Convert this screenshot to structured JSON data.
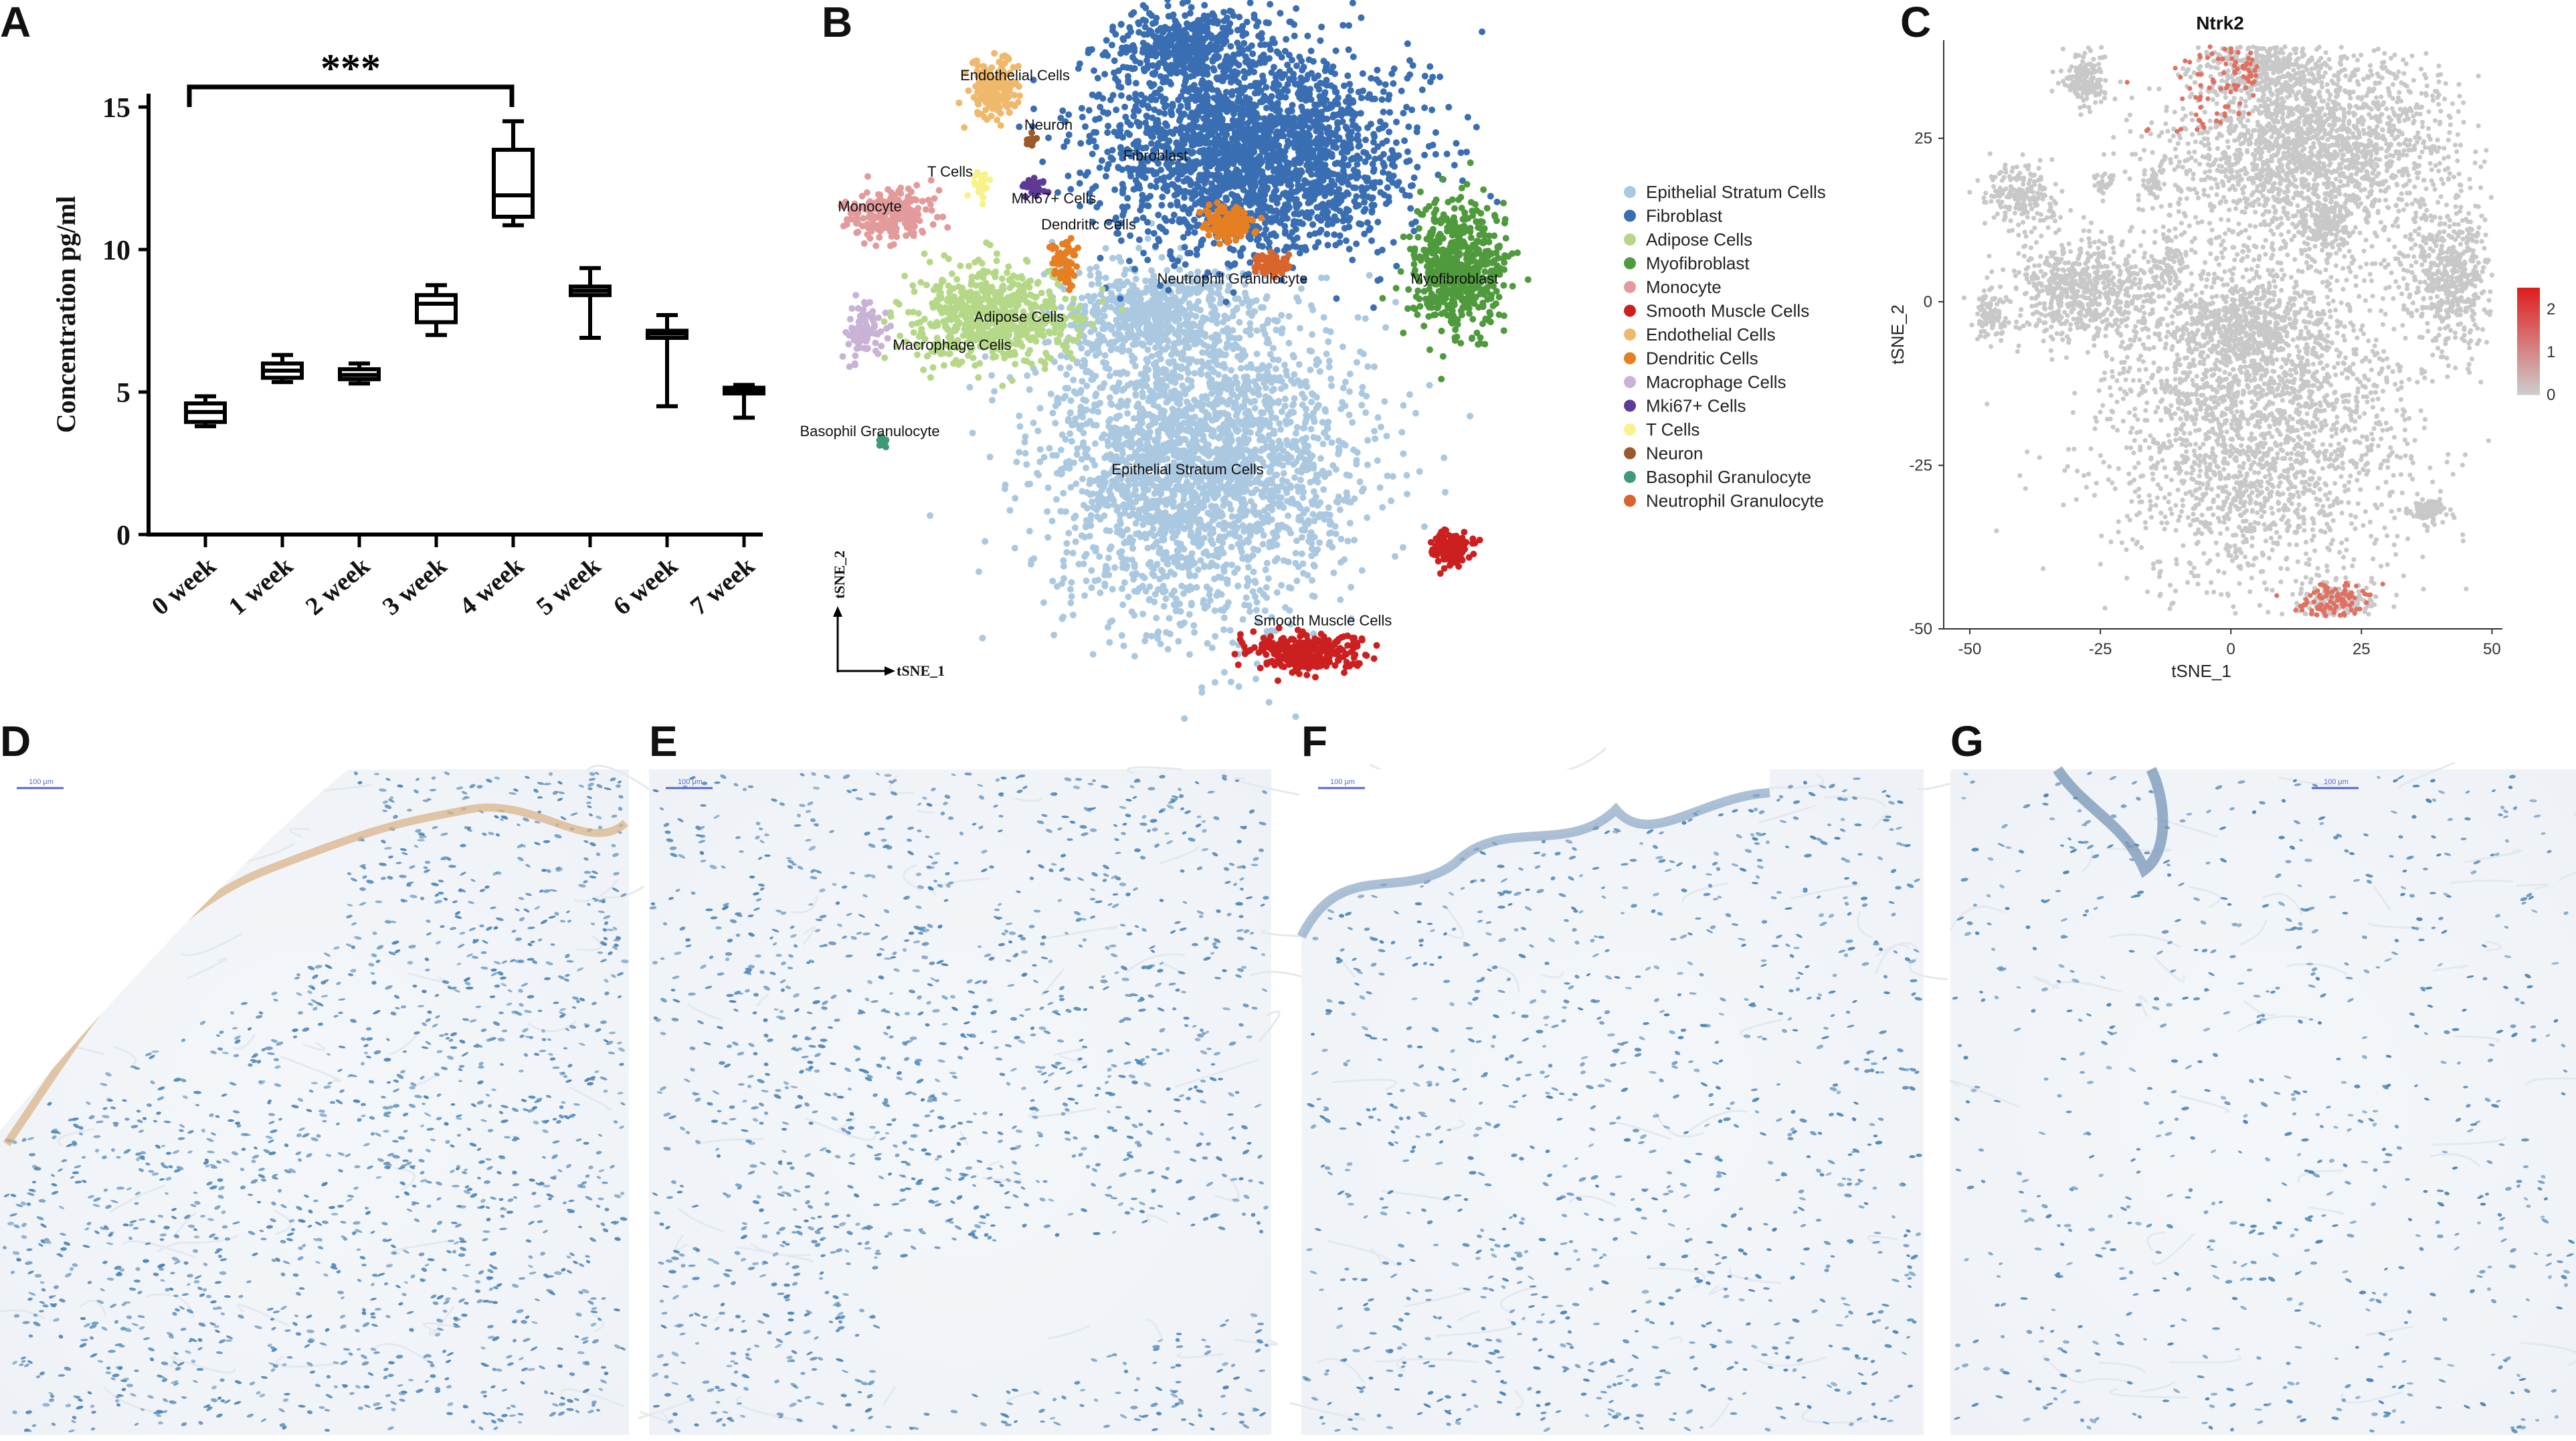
{
  "panels": {
    "A": "A",
    "B": "B",
    "C": "C",
    "D": "D",
    "E": "E",
    "F": "F",
    "G": "G"
  },
  "chart_data": [
    {
      "type": "box",
      "ylabel": "Concentration pg/ml",
      "ylim": [
        0,
        15
      ],
      "yticks": [
        0,
        5,
        10,
        15
      ],
      "significance": "***",
      "significance_pair": [
        "0 week",
        "4 week"
      ],
      "categories": [
        "0 week",
        "1 week",
        "2 week",
        "3 week",
        "4 week",
        "5 week",
        "6 week",
        "7 week"
      ],
      "boxes": [
        {
          "min": 3.8,
          "q1": 3.95,
          "median": 4.3,
          "q3": 4.6,
          "max": 4.85
        },
        {
          "min": 5.35,
          "q1": 5.5,
          "median": 5.75,
          "q3": 6.0,
          "max": 6.3
        },
        {
          "min": 5.3,
          "q1": 5.45,
          "median": 5.6,
          "q3": 5.8,
          "max": 6.0
        },
        {
          "min": 7.0,
          "q1": 7.45,
          "median": 8.1,
          "q3": 8.4,
          "max": 8.75
        },
        {
          "min": 10.85,
          "q1": 11.15,
          "median": 11.9,
          "q3": 13.5,
          "max": 14.5
        },
        {
          "min": 6.9,
          "q1": 8.4,
          "median": 8.55,
          "q3": 8.7,
          "max": 9.35
        },
        {
          "min": 4.5,
          "q1": 6.9,
          "median": 7.05,
          "q3": 7.15,
          "max": 7.7
        },
        {
          "min": 4.1,
          "q1": 4.95,
          "median": 5.05,
          "q3": 5.15,
          "max": 5.25
        }
      ]
    },
    {
      "type": "scatter",
      "xlabel": "tSNE_1",
      "ylabel": "tSNE_2",
      "legend_position": "right",
      "series": [
        {
          "name": "Epithelial Stratum Cells",
          "color": "#aac8e0",
          "label": "Epithelial Stratum Cells"
        },
        {
          "name": "Fibroblast",
          "color": "#3a6eb2",
          "label": "Fibroblast"
        },
        {
          "name": "Adipose Cells",
          "color": "#b5d888",
          "label": "Adipose Cells"
        },
        {
          "name": "Myofibroblast",
          "color": "#4f9a3c",
          "label": "Myofibroblast"
        },
        {
          "name": "Monocyte",
          "color": "#e39a9a",
          "label": "Monocyte"
        },
        {
          "name": "Smooth Muscle Cells",
          "color": "#cc2020",
          "label": "Smooth Muscle Cells"
        },
        {
          "name": "Endothelial Cells",
          "color": "#f0b86a",
          "label": "Endothelial Cells"
        },
        {
          "name": "Dendritic Cells",
          "color": "#e67e22",
          "label": "Dendritic Cells"
        },
        {
          "name": "Macrophage Cells",
          "color": "#c8b2d6",
          "label": "Macrophage Cells"
        },
        {
          "name": "Mki67+ Cells",
          "color": "#5e3a96",
          "label": "Mki67+ Cells"
        },
        {
          "name": "T Cells",
          "color": "#f7f38a",
          "label": "T Cells"
        },
        {
          "name": "Neuron",
          "color": "#9b5a2e",
          "label": "Neuron"
        },
        {
          "name": "Basophil Granulocyte",
          "color": "#3f9a76",
          "label": "Basophil Granulocyte"
        },
        {
          "name": "Neutrophil Granulocyte",
          "color": "#d8652c",
          "label": "Neutrophil Granulocyte"
        }
      ]
    },
    {
      "type": "scatter",
      "title": "Ntrk2",
      "xlabel": "tSNE_1",
      "ylabel": "tSNE_2",
      "xlim": [
        -55,
        52
      ],
      "ylim": [
        -50,
        40
      ],
      "xticks": [
        -50,
        -25,
        0,
        25,
        50
      ],
      "yticks": [
        25,
        0,
        -25,
        -50
      ],
      "colorbar": {
        "min": 0,
        "max": 2.5,
        "ticks": [
          2,
          1,
          0
        ],
        "low_color": "#cccccc",
        "high_color": "#e02020"
      }
    }
  ],
  "micrographs": {
    "D": {
      "scale_text": "100 μm"
    },
    "E": {
      "scale_text": "100 μm"
    },
    "F": {
      "scale_text": "100 μm"
    },
    "G": {
      "scale_text": "100 μm"
    }
  }
}
